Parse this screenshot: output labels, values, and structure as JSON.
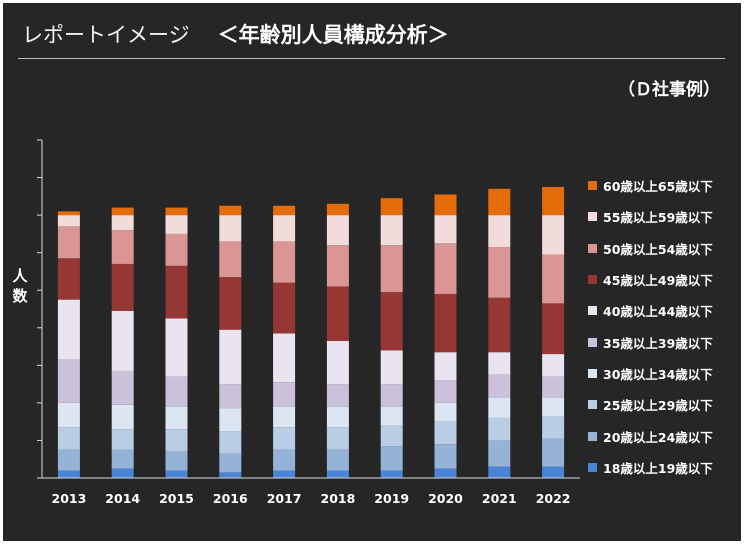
{
  "slide": {
    "title_lead": "レポートイメージ",
    "title_main": "＜年齢別人員構成分析＞",
    "note": "（Ｄ社事例）"
  },
  "chart_data": {
    "type": "bar",
    "stacked": true,
    "categories": [
      "2013",
      "2014",
      "2015",
      "2016",
      "2017",
      "2018",
      "2019",
      "2020",
      "2021",
      "2022"
    ],
    "ylabel": "人数",
    "ylim": [
      0,
      90
    ],
    "ytick_step": 10,
    "grid": false,
    "legend": "right",
    "series": [
      {
        "name": "18歳以上19歳以下",
        "color": "#4a84d6",
        "values": [
          2,
          2.5,
          2,
          1.5,
          2,
          2,
          2,
          2.5,
          3,
          3
        ]
      },
      {
        "name": "20歳以上24歳以下",
        "color": "#95b3d7",
        "values": [
          5.5,
          5,
          5,
          5,
          5.5,
          5.5,
          6.5,
          6.5,
          7,
          7.5
        ]
      },
      {
        "name": "25歳以上29歳以下",
        "color": "#b9cde5",
        "values": [
          6,
          5.5,
          6,
          6,
          6,
          6,
          5.5,
          6,
          6,
          6
        ]
      },
      {
        "name": "30歳以上34歳以下",
        "color": "#dce6f2",
        "values": [
          6.5,
          6.5,
          6,
          6,
          5.5,
          5.5,
          5,
          5,
          5.5,
          5
        ]
      },
      {
        "name": "35歳以上39歳以下",
        "color": "#ccc1da",
        "values": [
          11.5,
          9,
          8,
          6.5,
          6.5,
          6,
          6,
          6,
          6,
          5.5
        ]
      },
      {
        "name": "40歳以上44歳以下",
        "color": "#e9e4ef",
        "values": [
          16,
          16,
          15.5,
          14.5,
          13,
          11.5,
          9,
          7.5,
          6,
          6
        ]
      },
      {
        "name": "45歳以上49歳以下",
        "color": "#953735",
        "values": [
          11,
          12.5,
          14,
          14,
          13.5,
          14.5,
          15.5,
          15.5,
          14.5,
          13.5
        ]
      },
      {
        "name": "50歳以上54歳以下",
        "color": "#d99694",
        "values": [
          8.5,
          9,
          8.5,
          9.5,
          11,
          11,
          12.5,
          13.5,
          13.5,
          13
        ]
      },
      {
        "name": "55歳以上59歳以下",
        "color": "#f2dcdb",
        "values": [
          3,
          4,
          5,
          7,
          7,
          8,
          8,
          7.5,
          8.5,
          10.5
        ]
      },
      {
        "name": "60歳以上65歳以下",
        "color": "#e46c0a",
        "values": [
          1,
          2,
          2,
          2.5,
          2.5,
          3,
          4.5,
          5.5,
          7,
          7.5
        ]
      }
    ]
  }
}
